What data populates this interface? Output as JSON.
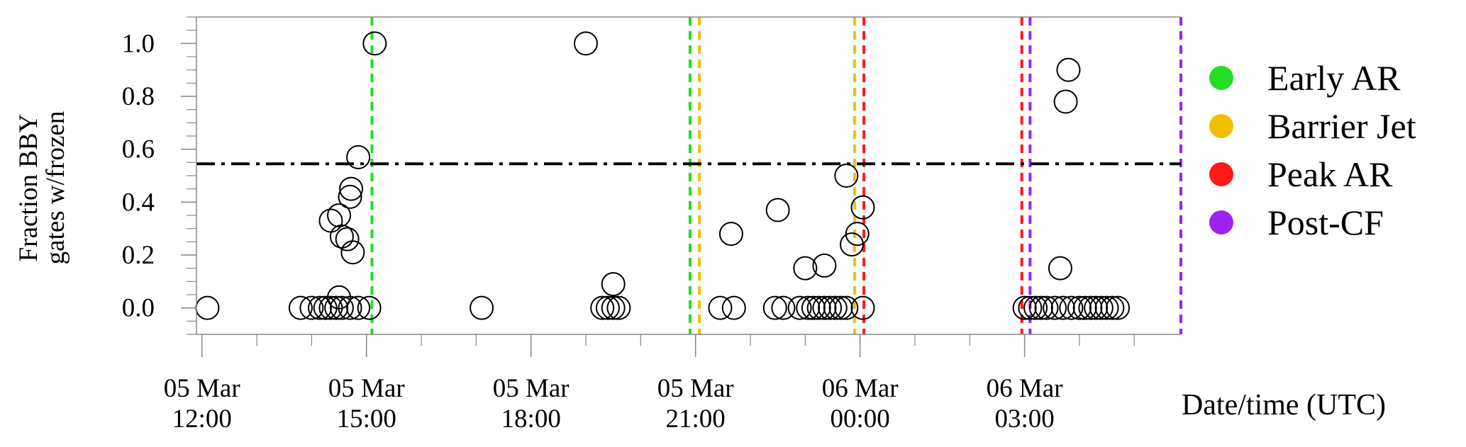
{
  "chart_data": {
    "type": "scatter",
    "ylabel_line1": "Fraction BBY",
    "ylabel_line2": "gates w/frozen",
    "xlabel": "Date/time (UTC)",
    "ylim": [
      -0.1,
      1.1
    ],
    "yticks": [
      0.0,
      0.2,
      0.4,
      0.6,
      0.8,
      1.0
    ],
    "ytick_labels": [
      "0.0",
      "0.2",
      "0.4",
      "0.6",
      "0.8",
      "1.0"
    ],
    "xlim_hours": [
      11.9,
      29.85
    ],
    "xticks": [
      {
        "hour": 12,
        "line1": "05 Mar",
        "line2": "12:00"
      },
      {
        "hour": 15,
        "line1": "05 Mar",
        "line2": "15:00"
      },
      {
        "hour": 18,
        "line1": "05 Mar",
        "line2": "18:00"
      },
      {
        "hour": 21,
        "line1": "05 Mar",
        "line2": "21:00"
      },
      {
        "hour": 24,
        "line1": "06 Mar",
        "line2": "00:00"
      },
      {
        "hour": 27,
        "line1": "06 Mar",
        "line2": "03:00"
      }
    ],
    "minor_tick_step_hours": 1,
    "threshold_line": {
      "y": 0.545,
      "style": "dash-dot",
      "color": "#000000"
    },
    "regime_lines": [
      {
        "hour": 15.1,
        "regime": "Early AR",
        "color": "#22dd22"
      },
      {
        "hour": 20.9,
        "regime": "Early AR",
        "color": "#22dd22"
      },
      {
        "hour": 21.07,
        "regime": "Barrier Jet",
        "color": "#f0c000"
      },
      {
        "hour": 23.9,
        "regime": "Barrier Jet",
        "color": "#f0c000"
      },
      {
        "hour": 24.07,
        "regime": "Peak AR",
        "color": "#ff1a1a"
      },
      {
        "hour": 26.95,
        "regime": "Peak AR",
        "color": "#ff1a1a"
      },
      {
        "hour": 27.1,
        "regime": "Post-CF",
        "color": "#a020f0"
      },
      {
        "hour": 29.85,
        "regime": "Post-CF",
        "color": "#a020f0"
      }
    ],
    "legend": {
      "position": "right",
      "entries": [
        {
          "label": "Early AR",
          "color": "#22dd22"
        },
        {
          "label": "Barrier Jet",
          "color": "#f0c000"
        },
        {
          "label": "Peak AR",
          "color": "#ff1a1a"
        },
        {
          "label": "Post-CF",
          "color": "#a020f0"
        }
      ]
    },
    "points": [
      {
        "x": 12.1,
        "y": 0.0
      },
      {
        "x": 13.8,
        "y": 0.0
      },
      {
        "x": 14.0,
        "y": 0.0
      },
      {
        "x": 14.15,
        "y": 0.0
      },
      {
        "x": 14.25,
        "y": 0.0
      },
      {
        "x": 14.35,
        "y": 0.0
      },
      {
        "x": 14.45,
        "y": 0.0
      },
      {
        "x": 14.55,
        "y": 0.0
      },
      {
        "x": 14.7,
        "y": 0.0
      },
      {
        "x": 14.85,
        "y": 0.0
      },
      {
        "x": 15.05,
        "y": 0.0
      },
      {
        "x": 14.5,
        "y": 0.04
      },
      {
        "x": 14.35,
        "y": 0.33
      },
      {
        "x": 14.5,
        "y": 0.35
      },
      {
        "x": 14.55,
        "y": 0.27
      },
      {
        "x": 14.65,
        "y": 0.26
      },
      {
        "x": 14.75,
        "y": 0.21
      },
      {
        "x": 14.7,
        "y": 0.42
      },
      {
        "x": 14.72,
        "y": 0.45
      },
      {
        "x": 14.85,
        "y": 0.57
      },
      {
        "x": 15.15,
        "y": 1.0
      },
      {
        "x": 17.1,
        "y": 0.0
      },
      {
        "x": 19.0,
        "y": 1.0
      },
      {
        "x": 19.3,
        "y": 0.0
      },
      {
        "x": 19.4,
        "y": 0.0
      },
      {
        "x": 19.5,
        "y": 0.0
      },
      {
        "x": 19.6,
        "y": 0.0
      },
      {
        "x": 19.5,
        "y": 0.09
      },
      {
        "x": 21.45,
        "y": 0.0
      },
      {
        "x": 21.7,
        "y": 0.0
      },
      {
        "x": 21.65,
        "y": 0.28
      },
      {
        "x": 22.5,
        "y": 0.37
      },
      {
        "x": 22.45,
        "y": 0.0
      },
      {
        "x": 22.6,
        "y": 0.0
      },
      {
        "x": 22.9,
        "y": 0.0
      },
      {
        "x": 23.05,
        "y": 0.0
      },
      {
        "x": 23.15,
        "y": 0.0
      },
      {
        "x": 23.25,
        "y": 0.0
      },
      {
        "x": 23.35,
        "y": 0.0
      },
      {
        "x": 23.45,
        "y": 0.0
      },
      {
        "x": 23.55,
        "y": 0.0
      },
      {
        "x": 23.65,
        "y": 0.0
      },
      {
        "x": 23.75,
        "y": 0.0
      },
      {
        "x": 24.05,
        "y": 0.0
      },
      {
        "x": 23.0,
        "y": 0.15
      },
      {
        "x": 23.35,
        "y": 0.16
      },
      {
        "x": 23.75,
        "y": 0.5
      },
      {
        "x": 23.85,
        "y": 0.24
      },
      {
        "x": 23.95,
        "y": 0.28
      },
      {
        "x": 24.05,
        "y": 0.38
      },
      {
        "x": 27.0,
        "y": 0.0
      },
      {
        "x": 27.1,
        "y": 0.0
      },
      {
        "x": 27.2,
        "y": 0.0
      },
      {
        "x": 27.3,
        "y": 0.0
      },
      {
        "x": 27.4,
        "y": 0.0
      },
      {
        "x": 27.55,
        "y": 0.0
      },
      {
        "x": 27.7,
        "y": 0.0
      },
      {
        "x": 27.85,
        "y": 0.0
      },
      {
        "x": 28.0,
        "y": 0.0
      },
      {
        "x": 28.1,
        "y": 0.0
      },
      {
        "x": 28.2,
        "y": 0.0
      },
      {
        "x": 28.3,
        "y": 0.0
      },
      {
        "x": 28.4,
        "y": 0.0
      },
      {
        "x": 28.5,
        "y": 0.0
      },
      {
        "x": 28.6,
        "y": 0.0
      },
      {
        "x": 28.7,
        "y": 0.0
      },
      {
        "x": 27.65,
        "y": 0.15
      },
      {
        "x": 27.75,
        "y": 0.78
      },
      {
        "x": 27.8,
        "y": 0.9
      }
    ]
  }
}
